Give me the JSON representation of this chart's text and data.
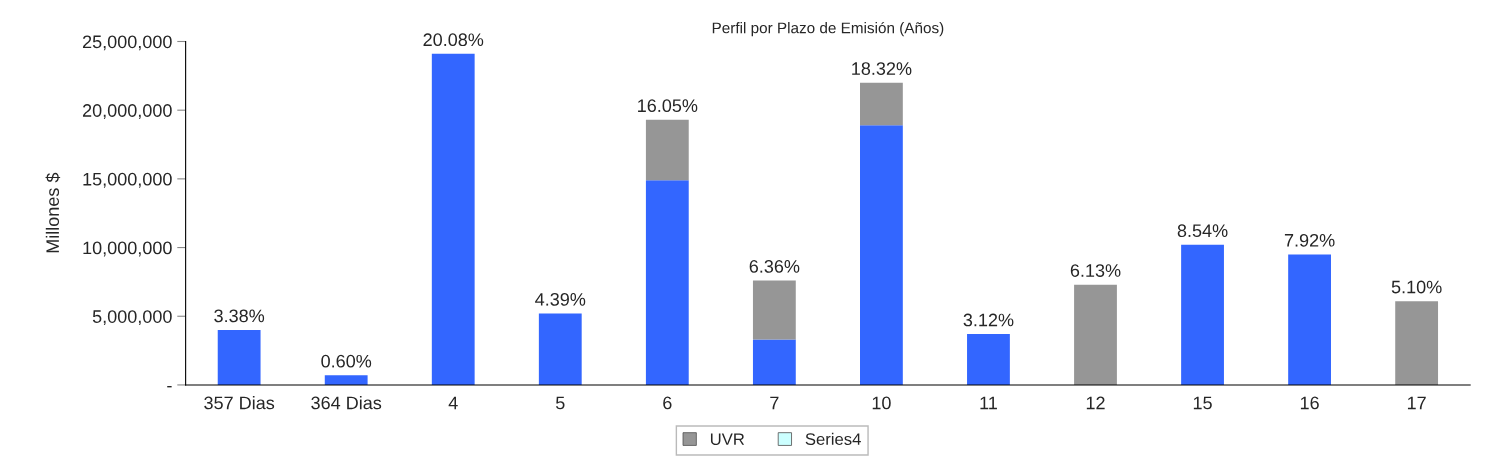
{
  "chart_data": {
    "type": "bar",
    "title": "Perfil por Plazo de Emisión (Años)",
    "ylabel": "Millones $",
    "categories": [
      "357 Dias",
      "364 Dias",
      "4",
      "5",
      "6",
      "7",
      "10",
      "11",
      "12",
      "15",
      "16",
      "17"
    ],
    "stacked": true,
    "series": [
      {
        "color": "#3366ff",
        "values": [
          4000000,
          700000,
          24100000,
          5200000,
          14900000,
          3300000,
          18900000,
          3700000,
          null,
          10200000,
          9500000,
          null
        ]
      },
      {
        "name": "UVR",
        "color": "#969696",
        "values": [
          null,
          null,
          null,
          null,
          4400000,
          4300000,
          3100000,
          null,
          7300000,
          null,
          null,
          6100000
        ]
      },
      {
        "name": "Series4",
        "color": "#ccffff",
        "values": [
          null,
          null,
          null,
          null,
          null,
          null,
          null,
          null,
          null,
          null,
          null,
          null
        ]
      }
    ],
    "annotations": [
      {
        "text": "3.38%",
        "x": "357 Dias",
        "y": 4000000
      },
      {
        "text": "0.60%",
        "x": "364 Dias",
        "y": 700000
      },
      {
        "text": "20.08%",
        "x": "4",
        "y": 24100000
      },
      {
        "text": "4.39%",
        "x": "5",
        "y": 5200000
      },
      {
        "text": "16.05%",
        "x": "6",
        "y": 19300000
      },
      {
        "text": "6.36%",
        "x": "7",
        "y": 7600000
      },
      {
        "text": "18.32%",
        "x": "10",
        "y": 22000000
      },
      {
        "text": "3.12%",
        "x": "11",
        "y": 3700000
      },
      {
        "text": "6.13%",
        "x": "12",
        "y": 7300000
      },
      {
        "text": "8.54%",
        "x": "15",
        "y": 10200000
      },
      {
        "text": "7.92%",
        "x": "16",
        "y": 9500000
      },
      {
        "text": "5.10%",
        "x": "17",
        "y": 6100000
      }
    ],
    "ylim": [
      0,
      25000000
    ],
    "yticks": [
      {
        "value": 0,
        "label": "-"
      },
      {
        "value": 5000000,
        "label": "5,000,000"
      },
      {
        "value": 10000000,
        "label": "10,000,000"
      },
      {
        "value": 15000000,
        "label": "15,000,000"
      },
      {
        "value": 20000000,
        "label": "20,000,000"
      },
      {
        "value": 25000000,
        "label": "25,000,000"
      }
    ],
    "grid": false,
    "legend": "bottom"
  }
}
